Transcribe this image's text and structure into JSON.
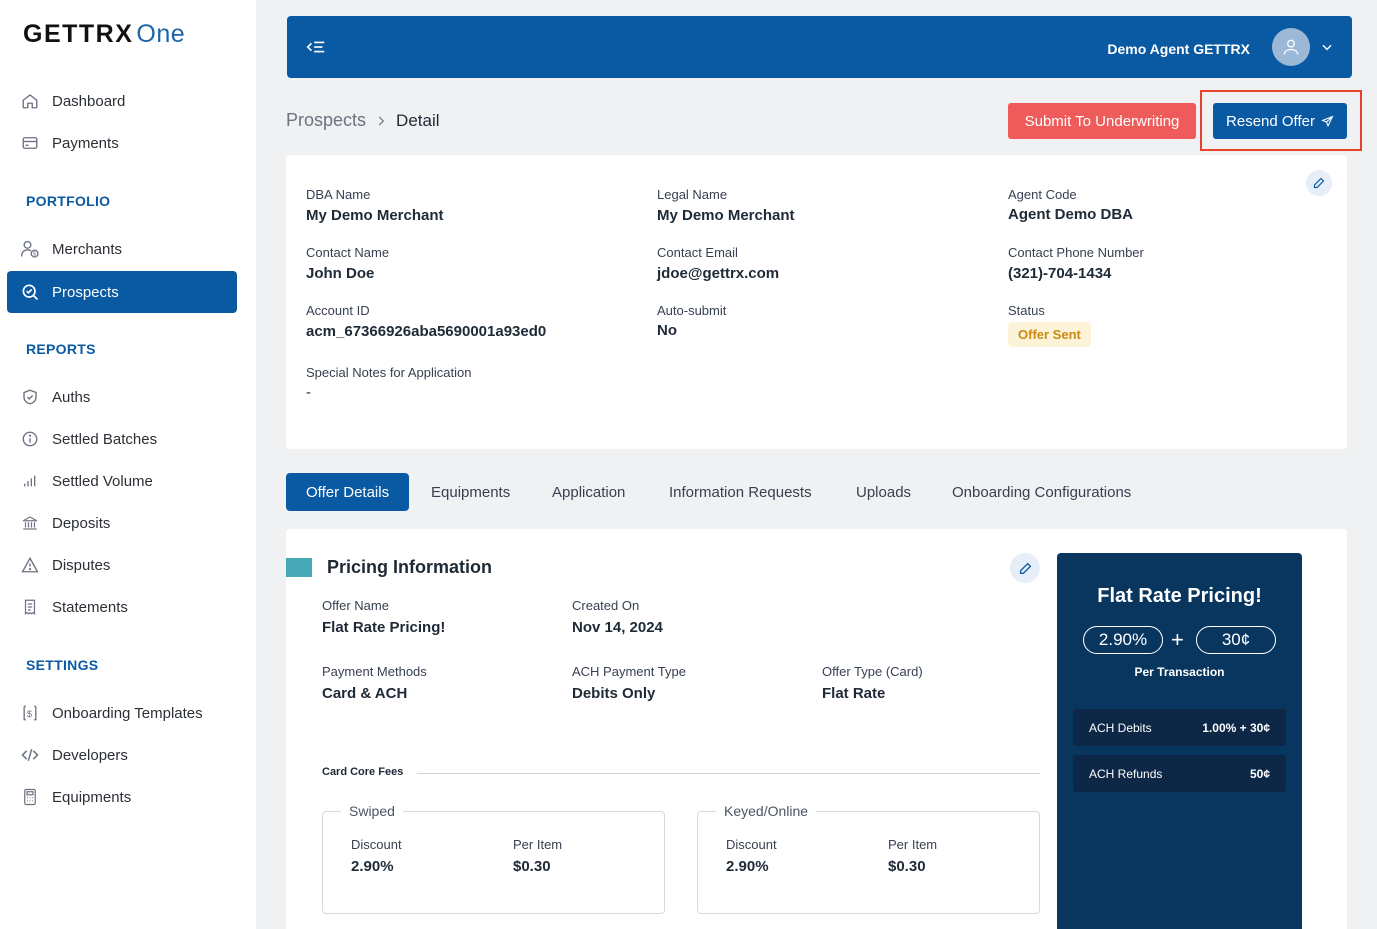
{
  "logo": {
    "part1": "GETTRX",
    "part2": "One"
  },
  "sidebar": {
    "items_top": [
      {
        "label": "Dashboard",
        "icon": "home-icon"
      },
      {
        "label": "Payments",
        "icon": "card-icon"
      }
    ],
    "portfolio_title": "PORTFOLIO",
    "portfolio": [
      {
        "label": "Merchants",
        "icon": "merchants-icon"
      },
      {
        "label": "Prospects",
        "icon": "prospects-search-icon",
        "active": true
      }
    ],
    "reports_title": "REPORTS",
    "reports": [
      {
        "label": "Auths",
        "icon": "shield-check-icon"
      },
      {
        "label": "Settled Batches",
        "icon": "info-circle-icon"
      },
      {
        "label": "Settled Volume",
        "icon": "bar-signal-icon"
      },
      {
        "label": "Deposits",
        "icon": "bank-icon"
      },
      {
        "label": "Disputes",
        "icon": "warning-icon"
      },
      {
        "label": "Statements",
        "icon": "receipt-icon"
      }
    ],
    "settings_title": "SETTINGS",
    "settings": [
      {
        "label": "Onboarding Templates",
        "icon": "dollar-doc-icon"
      },
      {
        "label": "Developers",
        "icon": "code-icon"
      },
      {
        "label": "Equipments",
        "icon": "terminal-icon"
      }
    ]
  },
  "topbar": {
    "user_name": "Demo Agent GETTRX"
  },
  "breadcrumb": {
    "parent": "Prospects",
    "current": "Detail"
  },
  "actions": {
    "submit": "Submit To Underwriting",
    "resend": "Resend Offer"
  },
  "details": {
    "dba_name": {
      "label": "DBA Name",
      "value": "My Demo Merchant"
    },
    "legal_name": {
      "label": "Legal Name",
      "value": "My Demo Merchant"
    },
    "agent_code": {
      "label": "Agent Code",
      "value": "Agent Demo DBA"
    },
    "contact_name": {
      "label": "Contact Name",
      "value": "John Doe"
    },
    "contact_email": {
      "label": "Contact Email",
      "value": "jdoe@gettrx.com"
    },
    "contact_phone": {
      "label": "Contact Phone Number",
      "value": "(321)-704-1434"
    },
    "account_id": {
      "label": "Account ID",
      "value": "acm_67366926aba5690001a93ed0"
    },
    "auto_submit": {
      "label": "Auto-submit",
      "value": "No"
    },
    "status": {
      "label": "Status",
      "value": "Offer Sent",
      "color": "#c98b12"
    },
    "notes": {
      "label": "Special Notes for Application",
      "value": "-"
    }
  },
  "tabs": [
    "Offer Details",
    "Equipments",
    "Application",
    "Information Requests",
    "Uploads",
    "Onboarding Configurations"
  ],
  "pricing": {
    "title": "Pricing Information",
    "offer_name": {
      "label": "Offer Name",
      "value": "Flat Rate Pricing!"
    },
    "created_on": {
      "label": "Created On",
      "value": "Nov 14, 2024"
    },
    "payment_methods": {
      "label": "Payment Methods",
      "value": "Card & ACH"
    },
    "ach_type": {
      "label": "ACH Payment Type",
      "value": "Debits Only"
    },
    "offer_type": {
      "label": "Offer Type (Card)",
      "value": "Flat Rate"
    },
    "core_fees_title": "Card Core Fees",
    "swiped": {
      "title": "Swiped",
      "discount_label": "Discount",
      "discount": "2.90%",
      "per_item_label": "Per Item",
      "per_item": "$0.30"
    },
    "keyed": {
      "title": "Keyed/Online",
      "discount_label": "Discount",
      "discount": "2.90%",
      "per_item_label": "Per Item",
      "per_item": "$0.30"
    }
  },
  "promo": {
    "title": "Flat Rate Pricing!",
    "rate": "2.90%",
    "plus": "+",
    "fee": "30¢",
    "per_tx": "Per Transaction",
    "ach_debits": {
      "label": "ACH Debits",
      "value": "1.00% + 30¢"
    },
    "ach_refunds": {
      "label": "ACH Refunds",
      "value": "50¢"
    }
  },
  "colors": {
    "primary": "#0a5aa3",
    "danger": "#ef5a5a",
    "promo_bg": "#08365e",
    "accent": "#46a9b5"
  }
}
